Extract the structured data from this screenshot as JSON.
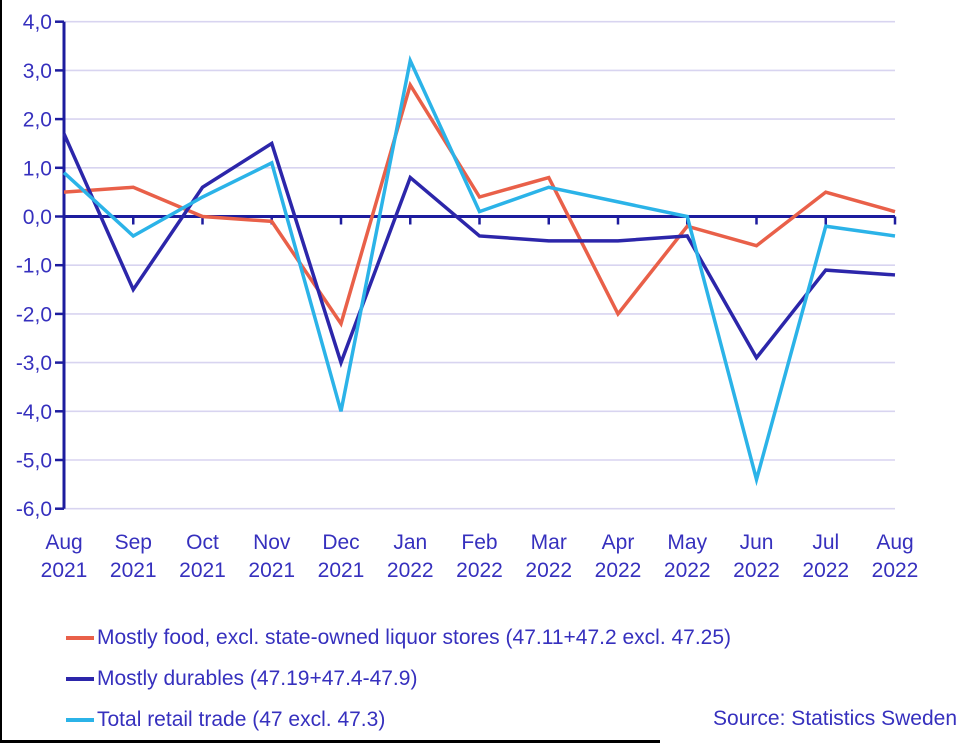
{
  "chart_data": {
    "type": "line",
    "title": "",
    "xlabel": "",
    "ylabel": "",
    "categories": [
      "Aug 2021",
      "Sep 2021",
      "Oct 2021",
      "Nov 2021",
      "Dec 2021",
      "Jan 2022",
      "Feb 2022",
      "Mar 2022",
      "Apr 2022",
      "May 2022",
      "Jun 2022",
      "Jul 2022",
      "Aug 2022"
    ],
    "series": [
      {
        "name": "Mostly food, excl. state-owned liquor stores (47.11+47.2 excl. 47.25)",
        "color": "#E96049",
        "values": [
          0.5,
          0.6,
          0.0,
          -0.1,
          -2.2,
          2.7,
          0.4,
          0.8,
          -2.0,
          -0.2,
          -0.6,
          0.5,
          0.1
        ]
      },
      {
        "name": "Mostly durables (47.19+47.4-47.9)",
        "color": "#2C26AA",
        "values": [
          1.7,
          -1.5,
          0.6,
          1.5,
          -3.0,
          0.8,
          -0.4,
          -0.5,
          -0.5,
          -0.4,
          -2.9,
          -1.1,
          -1.2
        ]
      },
      {
        "name": "Total retail trade (47 excl. 47.3)",
        "color": "#2BB3E8",
        "values": [
          0.9,
          -0.4,
          0.4,
          1.1,
          -4.0,
          3.2,
          0.1,
          0.6,
          0.3,
          0.0,
          -5.4,
          -0.2,
          -0.4
        ]
      }
    ],
    "ylim": [
      -6,
      4
    ],
    "ytick_step": 1,
    "ytick_labels": [
      "4,0",
      "3,0",
      "2,0",
      "1,0",
      "0,0",
      "-1,0",
      "-2,0",
      "-3,0",
      "-4,0",
      "-5,0",
      "-6,0"
    ],
    "decimal_separator": ",",
    "grid": true,
    "legend_position": "bottom-left"
  },
  "source_note": "Source: Statistics Sweden",
  "colors": {
    "background": "#FFFFFF",
    "axis": "#1D1C9E",
    "grid": "#D8D4F0",
    "tick_text": "#3630BE",
    "legend_text": "#3630BE",
    "frame": "#000000"
  }
}
